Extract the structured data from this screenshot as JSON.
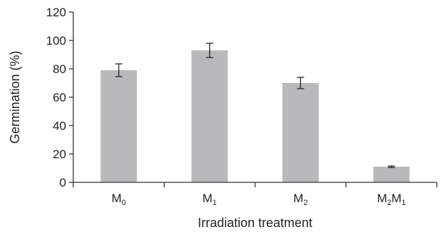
{
  "chart_data": {
    "type": "bar",
    "title": "",
    "xlabel": "Irradiation treatment",
    "ylabel": "Germination (%)",
    "ylim": [
      0,
      120
    ],
    "yticks": [
      0,
      20,
      40,
      60,
      80,
      100,
      120
    ],
    "grid": false,
    "categories": [
      {
        "base": "M",
        "sub": "0"
      },
      {
        "base": "M",
        "sub": "1"
      },
      {
        "base": "M",
        "sub": "2"
      },
      {
        "base": "M",
        "sub": "2",
        "base2": "M",
        "sub2": "1"
      }
    ],
    "values": [
      79,
      93,
      70,
      11
    ],
    "error": [
      4.5,
      5,
      4,
      0.5
    ],
    "bar_color": "#b9b9bb",
    "error_color": "#222222"
  }
}
